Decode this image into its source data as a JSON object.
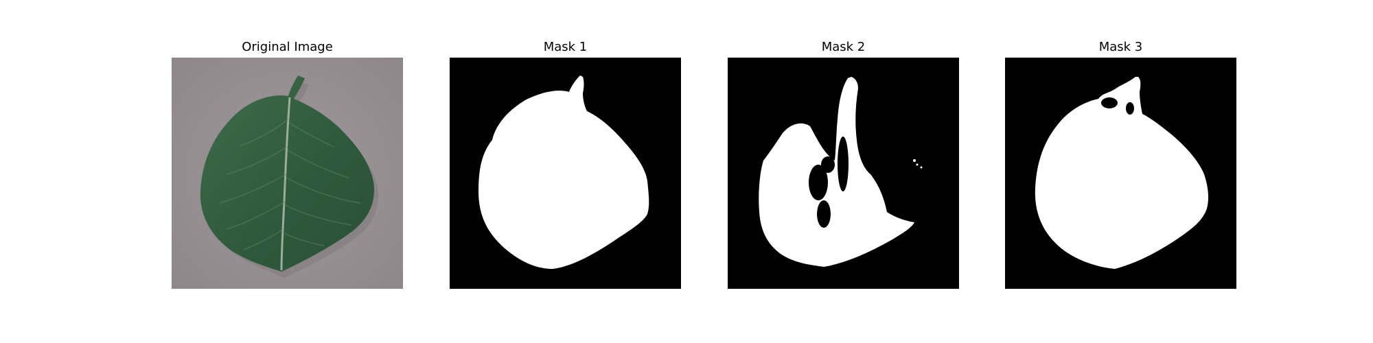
{
  "figure": {
    "panels": [
      {
        "title": "Original Image",
        "content": "leaf-photo"
      },
      {
        "title": "Mask 1",
        "content": "binary-mask"
      },
      {
        "title": "Mask 2",
        "content": "binary-mask"
      },
      {
        "title": "Mask 3",
        "content": "binary-mask"
      }
    ]
  },
  "colors": {
    "background": "#ffffff",
    "mask_foreground": "#ffffff",
    "mask_background": "#000000",
    "leaf_dark": "#2f4f38",
    "leaf_mid": "#3e6a4a",
    "surface_gray": "#9a9396"
  }
}
